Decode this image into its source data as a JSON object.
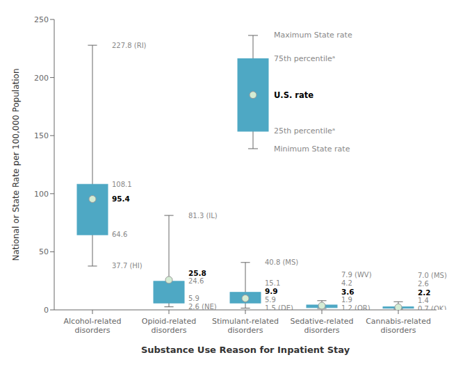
{
  "chart_data": {
    "type": "box",
    "xlabel": "Substance Use Reason for Inpatient Stay",
    "ylabel": "National or State Rate per 100,000 Population",
    "categories": [
      "Alcohol-related\ndisorders",
      "Opioid-related\ndisorders",
      "Stimulant-related\ndisorders",
      "Sedative-related\ndisorders",
      "Cannabis-related\ndisorders"
    ],
    "min": [
      37.7,
      2.6,
      1.5,
      1.2,
      0.7
    ],
    "q1": [
      64.6,
      5.9,
      5.9,
      1.9,
      1.4
    ],
    "q3": [
      108.1,
      24.6,
      15.1,
      4.2,
      2.6
    ],
    "max": [
      227.8,
      81.3,
      40.8,
      7.9,
      7.0
    ],
    "us_rate": [
      95.4,
      25.8,
      9.9,
      3.6,
      2.2
    ],
    "min_labels": [
      "37.7 (HI)",
      "2.6 (NE)",
      "1.5 (DE)",
      "1.2 (OR)",
      "0.7 (OK)"
    ],
    "max_labels": [
      "227.8 (RI)",
      "81.3 (IL)",
      "40.8 (MS)",
      "7.9 (WV)",
      "7.0 (MS)"
    ],
    "q1_labels": [
      "64.6",
      "5.9",
      "5.9",
      "1.9",
      "1.4"
    ],
    "q3_labels": [
      "108.1",
      "24.6",
      "15.1",
      "4.2",
      "2.6"
    ],
    "us_labels": [
      "95.4",
      "25.8",
      "9.9",
      "3.6",
      "2.2"
    ],
    "color": "#4ea8c4",
    "dot_color": "#d4ecd4",
    "ylim": [
      0,
      250
    ],
    "yticks": [
      0,
      50,
      100,
      150,
      200,
      250
    ],
    "grid": false,
    "data_labels": true,
    "legend": "upper right",
    "legend_texts": {
      "max": "Maximum State rate",
      "q3": "75th percentileᵃ",
      "us": "U.S. rate",
      "q1": "25th percentileᵃ",
      "min": "Minimum State rate"
    }
  }
}
